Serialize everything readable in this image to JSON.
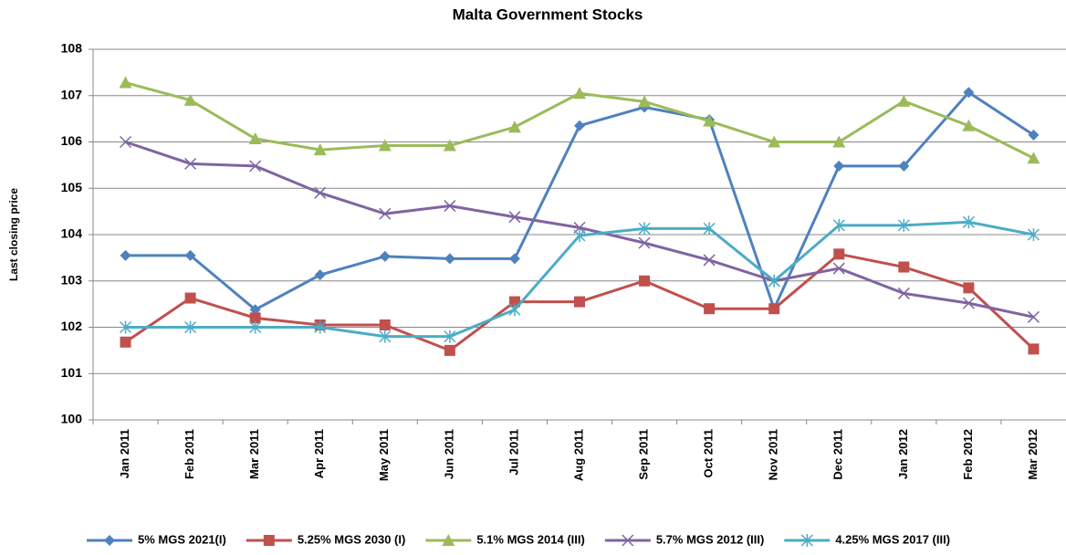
{
  "chart_data": {
    "type": "line",
    "title": "Malta Government Stocks",
    "y_label": "Last closing price",
    "categories": [
      "Jan 2011",
      "Feb 2011",
      "Mar 2011",
      "Apr 2011",
      "May 2011",
      "Jun 2011",
      "Jul 2011",
      "Aug 2011",
      "Sep 2011",
      "Oct 2011",
      "Nov 2011",
      "Dec 2011",
      "Jan 2012",
      "Feb 2012",
      "Mar 2012"
    ],
    "series": [
      {
        "name": "5% MGS 2021(I)",
        "color": "#4f81bd",
        "marker": "diamond",
        "values": [
          103.55,
          103.55,
          102.38,
          103.13,
          103.53,
          103.48,
          103.48,
          106.35,
          106.75,
          106.48,
          102.4,
          105.48,
          105.48,
          107.07,
          106.15
        ]
      },
      {
        "name": "5.25% MGS 2030 (I)",
        "color": "#c0504d",
        "marker": "square",
        "values": [
          101.68,
          102.63,
          102.2,
          102.05,
          102.05,
          101.5,
          102.55,
          102.55,
          103.0,
          102.4,
          102.4,
          103.58,
          103.3,
          102.85,
          101.53
        ]
      },
      {
        "name": "5.1% MGS 2014 (III)",
        "color": "#9bbb59",
        "marker": "triangle",
        "values": [
          107.28,
          106.9,
          106.07,
          105.83,
          105.92,
          105.92,
          106.32,
          107.05,
          106.87,
          106.45,
          106.0,
          106.0,
          106.88,
          106.35,
          105.65
        ]
      },
      {
        "name": "5.7% MGS 2012 (III)",
        "color": "#8064a2",
        "marker": "x",
        "values": [
          106.0,
          105.53,
          105.48,
          104.9,
          104.45,
          104.62,
          104.38,
          104.15,
          103.82,
          103.45,
          103.0,
          103.27,
          102.73,
          102.52,
          102.22
        ]
      },
      {
        "name": "4.25% MGS 2017 (III)",
        "color": "#4bacc6",
        "marker": "star",
        "values": [
          102.0,
          102.0,
          102.0,
          102.0,
          101.8,
          101.8,
          102.38,
          103.98,
          104.13,
          104.13,
          103.0,
          104.2,
          104.2,
          104.27,
          104.0
        ]
      }
    ],
    "ylim": [
      100,
      108
    ],
    "yticks": [
      100,
      101,
      102,
      103,
      104,
      105,
      106,
      107,
      108
    ],
    "grid": true
  }
}
